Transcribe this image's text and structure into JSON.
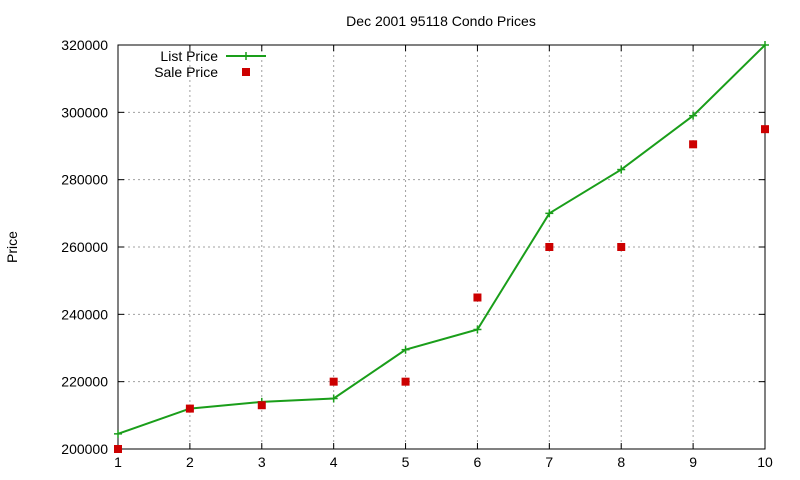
{
  "chart_data": {
    "type": "line",
    "title": "Dec 2001 95118 Condo Prices",
    "xlabel": "",
    "ylabel": "Price",
    "x": [
      1,
      2,
      3,
      4,
      5,
      6,
      7,
      8,
      9,
      10
    ],
    "xlim": [
      1,
      10
    ],
    "ylim": [
      200000,
      320000
    ],
    "xticks": [
      1,
      2,
      3,
      4,
      5,
      6,
      7,
      8,
      9,
      10
    ],
    "yticks": [
      200000,
      220000,
      240000,
      260000,
      280000,
      300000,
      320000
    ],
    "grid": true,
    "legend_position": "top-left",
    "series": [
      {
        "name": "List Price",
        "style": "linespoints",
        "marker": "plus",
        "color": "#1a9e1a",
        "values": [
          204500,
          212000,
          214000,
          215000,
          229500,
          235500,
          270000,
          283000,
          299000,
          320000
        ]
      },
      {
        "name": "Sale Price",
        "style": "points",
        "marker": "square",
        "color": "#cc0000",
        "values": [
          200000,
          212000,
          213000,
          220000,
          220000,
          245000,
          260000,
          260000,
          290500,
          295000
        ]
      }
    ]
  }
}
